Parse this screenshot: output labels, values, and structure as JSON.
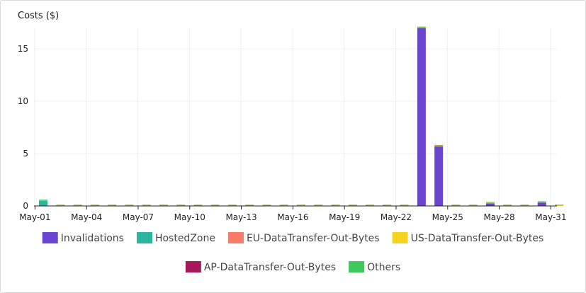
{
  "chart_data": {
    "type": "bar",
    "stacked": true,
    "title": "Costs ($)",
    "xlabel": "",
    "ylabel": "",
    "ylim": [
      0,
      17.5
    ],
    "yticks": [
      0,
      5,
      10,
      15
    ],
    "grid": true,
    "legend_position": "bottom",
    "categories": [
      "May-01",
      "May-02",
      "May-03",
      "May-04",
      "May-05",
      "May-06",
      "May-07",
      "May-08",
      "May-09",
      "May-10",
      "May-11",
      "May-12",
      "May-13",
      "May-14",
      "May-15",
      "May-16",
      "May-17",
      "May-18",
      "May-19",
      "May-20",
      "May-21",
      "May-22",
      "May-23",
      "May-24",
      "May-25",
      "May-26",
      "May-27",
      "May-28",
      "May-29",
      "May-30",
      "May-31"
    ],
    "xtick_labels": [
      "May-01",
      "May-04",
      "May-07",
      "May-10",
      "May-13",
      "May-16",
      "May-19",
      "May-22",
      "May-25",
      "May-28",
      "May-31"
    ],
    "series": [
      {
        "name": "Invalidations",
        "color": "#6b44d1",
        "values": [
          0,
          0,
          0,
          0,
          0,
          0,
          0,
          0,
          0,
          0,
          0,
          0,
          0,
          0,
          0,
          0,
          0,
          0,
          0,
          0,
          0,
          0,
          17,
          5.7,
          0,
          0,
          0.25,
          0,
          0,
          0.33,
          0
        ]
      },
      {
        "name": "HostedZone",
        "color": "#2bb5a0",
        "values": [
          0.5,
          0,
          0,
          0,
          0,
          0,
          0,
          0,
          0,
          0,
          0,
          0,
          0,
          0,
          0,
          0,
          0,
          0,
          0,
          0,
          0,
          0,
          0,
          0,
          0,
          0,
          0,
          0,
          0,
          0,
          0
        ]
      },
      {
        "name": "EU-DataTransfer-Out-Bytes",
        "color": "#fa7b69",
        "values": [
          0,
          0,
          0,
          0,
          0,
          0,
          0,
          0,
          0,
          0,
          0,
          0,
          0,
          0,
          0,
          0,
          0,
          0,
          0,
          0,
          0,
          0,
          0,
          0,
          0,
          0,
          0,
          0,
          0,
          0,
          0
        ]
      },
      {
        "name": "US-DataTransfer-Out-Bytes",
        "color": "#f5d21f",
        "values": [
          0.03,
          0.05,
          0.05,
          0.05,
          0.05,
          0.05,
          0.05,
          0.05,
          0.05,
          0.05,
          0.05,
          0.05,
          0.05,
          0.05,
          0.05,
          0.05,
          0.05,
          0.05,
          0.05,
          0.05,
          0.05,
          0.05,
          0.05,
          0.05,
          0.05,
          0.05,
          0.05,
          0.05,
          0.05,
          0.05,
          0.05
        ]
      },
      {
        "name": "AP-DataTransfer-Out-Bytes",
        "color": "#a6195a",
        "values": [
          0,
          0,
          0,
          0,
          0,
          0,
          0,
          0,
          0,
          0,
          0,
          0,
          0,
          0,
          0,
          0,
          0,
          0,
          0,
          0,
          0,
          0,
          0,
          0,
          0,
          0,
          0,
          0,
          0,
          0,
          0
        ]
      },
      {
        "name": "Others",
        "color": "#3dc95d",
        "values": [
          0.02,
          0.02,
          0.02,
          0.02,
          0.02,
          0.02,
          0.02,
          0.02,
          0.02,
          0.02,
          0.02,
          0.02,
          0.02,
          0.02,
          0.02,
          0.02,
          0.02,
          0.02,
          0.02,
          0.02,
          0.02,
          0.02,
          0.02,
          0.02,
          0.02,
          0.02,
          0.02,
          0.02,
          0.02,
          0.02,
          0.02
        ]
      }
    ]
  }
}
